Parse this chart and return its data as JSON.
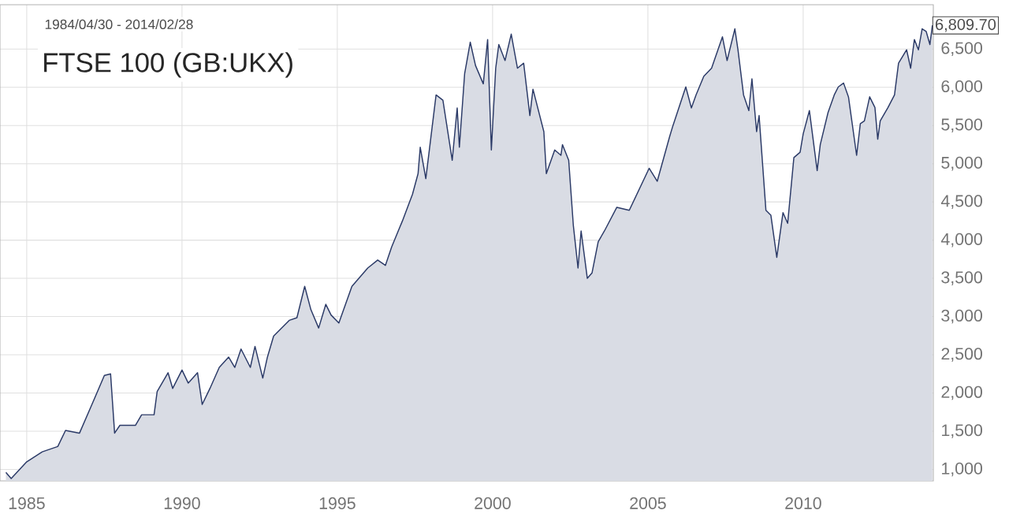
{
  "chart_data": {
    "type": "area",
    "title": "FTSE 100 (GB:UKX)",
    "subtitle": "1984/04/30 - 2014/02/28",
    "x": [
      1984.33,
      1984.5,
      1985.0,
      1985.5,
      1986.0,
      1986.25,
      1986.7,
      1987.1,
      1987.5,
      1987.7,
      1987.83,
      1988.0,
      1988.5,
      1988.7,
      1989.1,
      1989.2,
      1989.55,
      1989.7,
      1990.0,
      1990.2,
      1990.5,
      1990.65,
      1990.9,
      1991.2,
      1991.5,
      1991.7,
      1991.9,
      1992.2,
      1992.35,
      1992.6,
      1992.75,
      1992.95,
      1993.45,
      1993.7,
      1993.95,
      1994.15,
      1994.4,
      1994.63,
      1994.8,
      1995.05,
      1995.47,
      1995.98,
      1996.3,
      1996.55,
      1996.75,
      1997.1,
      1997.42,
      1997.6,
      1997.67,
      1997.85,
      1998.18,
      1998.4,
      1998.7,
      1998.86,
      1998.93,
      1999.1,
      1999.28,
      1999.45,
      1999.7,
      1999.84,
      1999.96,
      2000.1,
      2000.2,
      2000.4,
      2000.6,
      2000.8,
      2001.0,
      2001.2,
      2001.3,
      2001.65,
      2001.73,
      2002.0,
      2002.2,
      2002.25,
      2002.45,
      2002.6,
      2002.75,
      2002.85,
      2003.05,
      2003.2,
      2003.4,
      2003.6,
      2004.0,
      2004.4,
      2005.04,
      2005.3,
      2005.7,
      2005.8,
      2006.22,
      2006.4,
      2006.55,
      2006.8,
      2007.05,
      2007.4,
      2007.55,
      2007.8,
      2007.9,
      2008.08,
      2008.25,
      2008.35,
      2008.5,
      2008.58,
      2008.8,
      2008.96,
      2009.15,
      2009.35,
      2009.5,
      2009.7,
      2009.9,
      2010.0,
      2010.2,
      2010.45,
      2010.55,
      2010.8,
      2011.0,
      2011.13,
      2011.3,
      2011.46,
      2011.72,
      2011.84,
      2011.97,
      2012.14,
      2012.31,
      2012.4,
      2012.48,
      2012.73,
      2012.94,
      2013.07,
      2013.33,
      2013.46,
      2013.58,
      2013.71,
      2013.83,
      2013.96,
      2014.08,
      2014.16
    ],
    "series": [
      {
        "color": "#2b3a67",
        "values": [
          960,
          880,
          1100,
          1230,
          1300,
          1510,
          1475,
          1850,
          2230,
          2250,
          1475,
          1577,
          1577,
          1715,
          1715,
          2020,
          2265,
          2060,
          2300,
          2130,
          2265,
          1850,
          2060,
          2335,
          2470,
          2335,
          2575,
          2335,
          2610,
          2195,
          2470,
          2745,
          2950,
          2985,
          3395,
          3090,
          2850,
          3160,
          3020,
          2915,
          3395,
          3635,
          3740,
          3670,
          3910,
          4255,
          4600,
          4870,
          5215,
          4805,
          5900,
          5830,
          5045,
          5730,
          5215,
          6180,
          6590,
          6285,
          6045,
          6625,
          5180,
          6250,
          6560,
          6350,
          6695,
          6250,
          6315,
          5630,
          5975,
          5420,
          4870,
          5180,
          5110,
          5250,
          5045,
          4190,
          3635,
          4120,
          3500,
          3570,
          3980,
          4120,
          4430,
          4390,
          4940,
          4770,
          5355,
          5490,
          6005,
          5730,
          5900,
          6145,
          6250,
          6660,
          6350,
          6765,
          6490,
          5900,
          5695,
          6110,
          5420,
          5630,
          4390,
          4325,
          3775,
          4360,
          4220,
          5080,
          5150,
          5390,
          5695,
          4910,
          5250,
          5670,
          5900,
          6005,
          6055,
          5870,
          5110,
          5525,
          5560,
          5875,
          5735,
          5320,
          5560,
          5735,
          5900,
          6315,
          6490,
          6250,
          6625,
          6490,
          6765,
          6730,
          6560,
          6809.7
        ]
      }
    ],
    "annotations": [
      {
        "text": "6,809.70",
        "x": 2014.16,
        "y": 6809.7
      }
    ],
    "xlim": [
      1984.14,
      2014.19
    ],
    "ylim": [
      850,
      7080
    ],
    "xticks": [
      1985,
      1990,
      1995,
      2000,
      2005,
      2010
    ],
    "yticks": [
      {
        "value": 1000,
        "label": "1,000"
      },
      {
        "value": 1500,
        "label": "1,500"
      },
      {
        "value": 2000,
        "label": "2,000"
      },
      {
        "value": 2500,
        "label": "2,500"
      },
      {
        "value": 3000,
        "label": "3,000"
      },
      {
        "value": 3500,
        "label": "3,500"
      },
      {
        "value": 4000,
        "label": "4,000"
      },
      {
        "value": 4500,
        "label": "4,500"
      },
      {
        "value": 5000,
        "label": "5,000"
      },
      {
        "value": 5500,
        "label": "5,500"
      },
      {
        "value": 6000,
        "label": "6,000"
      },
      {
        "value": 6500,
        "label": "6,500"
      }
    ],
    "grid": true
  }
}
